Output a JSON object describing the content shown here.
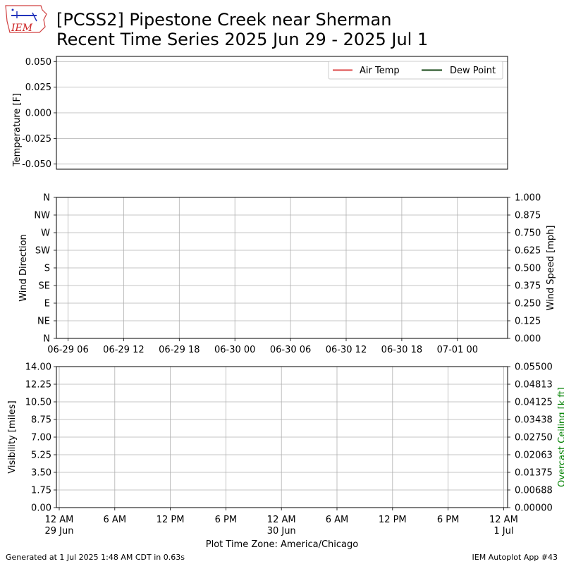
{
  "title_line1": "[PCSS2] Pipestone Creek near Sherman",
  "title_line2": "Recent Time Series 2025 Jun 29 - 2025 Jul 1",
  "logo_text": "IEM",
  "footer_left": "Generated at 1 Jul 2025 1:48 AM CDT in 0.63s",
  "footer_right": "IEM Autoplot App #43",
  "colors": {
    "air_temp": "#e05c5c",
    "dew_point": "#2e5b2e",
    "grid": "#b0b0b0",
    "ceiling_label": "#008000"
  },
  "chart_data": [
    {
      "type": "line",
      "ylabel": "Temperature [F]",
      "ylim": [
        -0.055,
        0.055
      ],
      "yticks": [
        "-0.050",
        "-0.025",
        "0.000",
        "0.025",
        "0.050"
      ],
      "ytick_values": [
        -0.05,
        -0.025,
        0.0,
        0.025,
        0.05
      ],
      "grid": true,
      "legend_position": "upper-right",
      "series": [
        {
          "name": "Air Temp",
          "values": []
        },
        {
          "name": "Dew Point",
          "values": []
        }
      ]
    },
    {
      "type": "scatter",
      "ylabel": "Wind Direction",
      "ylabel_right": "Wind Speed [mph]",
      "yticks": [
        "N",
        "NE",
        "E",
        "SE",
        "S",
        "SW",
        "W",
        "NW",
        "N"
      ],
      "yticks_right": [
        "0.000",
        "0.125",
        "0.250",
        "0.375",
        "0.500",
        "0.625",
        "0.750",
        "0.875",
        "1.000"
      ],
      "ylim_right": [
        0,
        1
      ],
      "xticks": [
        "06-29 06",
        "06-29 12",
        "06-29 18",
        "06-30 00",
        "06-30 06",
        "06-30 12",
        "06-30 18",
        "07-01 00"
      ],
      "grid": true,
      "series": []
    },
    {
      "type": "line",
      "ylabel": "Visibility [miles]",
      "ylabel_right": "Overcast Ceiling [k ft]",
      "ylim": [
        0,
        14
      ],
      "yticks": [
        "0.00",
        "1.75",
        "3.50",
        "5.25",
        "7.00",
        "8.75",
        "10.50",
        "12.25",
        "14.00"
      ],
      "ylim_right": [
        0,
        0.055
      ],
      "yticks_right": [
        "0.00000",
        "0.00688",
        "0.01375",
        "0.02063",
        "0.02750",
        "0.03438",
        "0.04125",
        "0.04813",
        "0.05500"
      ],
      "xticks": [
        {
          "line1": "12 AM",
          "line2": "29 Jun"
        },
        {
          "line1": "6 AM",
          "line2": ""
        },
        {
          "line1": "12 PM",
          "line2": ""
        },
        {
          "line1": "6 PM",
          "line2": ""
        },
        {
          "line1": "12 AM",
          "line2": "30 Jun"
        },
        {
          "line1": "6 AM",
          "line2": ""
        },
        {
          "line1": "12 PM",
          "line2": ""
        },
        {
          "line1": "6 PM",
          "line2": ""
        },
        {
          "line1": "12 AM",
          "line2": "1 Jul"
        }
      ],
      "xlabel": "Plot Time Zone: America/Chicago",
      "grid": true,
      "series": []
    }
  ]
}
